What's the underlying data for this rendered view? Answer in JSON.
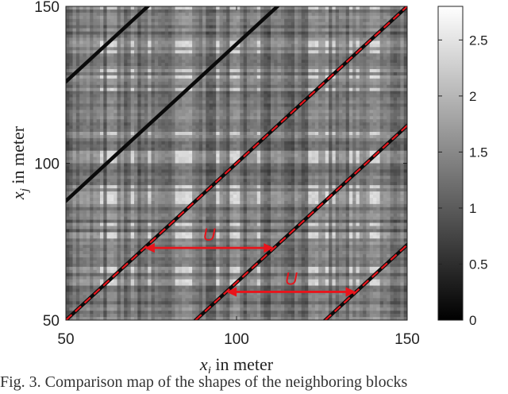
{
  "chart_data": {
    "type": "heatmap",
    "x": {
      "min": 50,
      "max": 150,
      "ticks": [
        50,
        100,
        150
      ],
      "tick_labels": [
        "50",
        "100",
        "150"
      ]
    },
    "y": {
      "min": 50,
      "max": 150,
      "ticks": [
        50,
        100,
        150
      ],
      "tick_labels": [
        "50",
        "100",
        "150"
      ]
    },
    "xlabel": {
      "symbol": "x",
      "subscript": "i",
      "rest": " in meter"
    },
    "ylabel": {
      "symbol": "x",
      "subscript": "j",
      "rest": " in meter"
    },
    "colormap": "gray",
    "colorbar": {
      "min": 0,
      "max": 2.8,
      "ticks": [
        0,
        0.5,
        1,
        1.5,
        2,
        2.5
      ],
      "tick_labels": [
        "0",
        "0.5",
        "1",
        "1.5",
        "2",
        "2.5"
      ]
    },
    "dashed_lines": [
      {
        "color": "#e8141b",
        "points": [
          [
            50,
            50
          ],
          [
            150,
            150
          ]
        ]
      },
      {
        "color": "#e8141b",
        "points": [
          [
            88,
            50
          ],
          [
            150,
            112
          ]
        ]
      },
      {
        "color": "#e8141b",
        "points": [
          [
            126,
            50
          ],
          [
            150,
            74
          ]
        ]
      }
    ],
    "arrows": [
      {
        "label": "U",
        "color": "#e8141b",
        "y": 73,
        "x_start": 73,
        "x_end": 111
      },
      {
        "label": "U",
        "color": "#e8141b",
        "y": 59,
        "x_start": 97,
        "x_end": 135
      }
    ]
  },
  "caption": "Fig. 3.  Comparison map of the shapes of the neighboring blocks"
}
